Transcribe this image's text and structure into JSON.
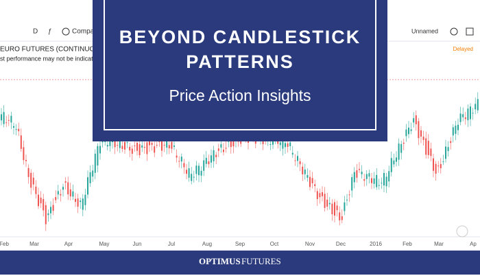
{
  "toolbar": {
    "interval": "D",
    "compare": "Compar",
    "layout": "Unnamed",
    "delayed": "Delayed"
  },
  "chart": {
    "symbol": "EURO FUTURES (CONTINUOUS:",
    "disclaimer": "st performance may not be indicative o",
    "months": [
      "Feb",
      "Mar",
      "Apr",
      "May",
      "Jun",
      "Jul",
      "Aug",
      "Sep",
      "Oct",
      "Nov",
      "Dec",
      "2016",
      "Feb",
      "Mar",
      "Ap"
    ]
  },
  "banner": {
    "title_line1": "BEYOND CANDLESTICK",
    "title_line2": "PATTERNS",
    "subtitle": "Price Action Insights"
  },
  "footer": {
    "brand_first": "OPTIMUS",
    "brand_second": "FUTURES"
  }
}
